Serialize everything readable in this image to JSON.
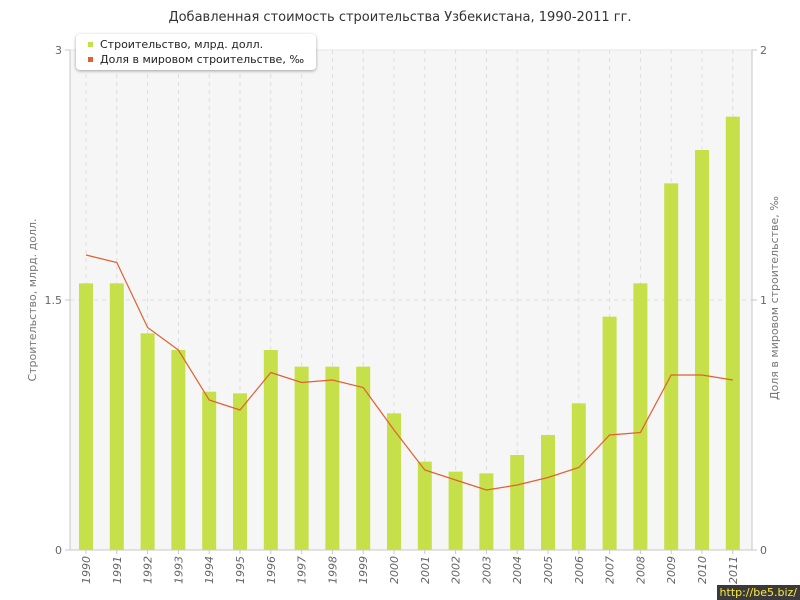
{
  "chart_data": {
    "type": "bar",
    "title": "Добавленная стоимость строительства Узбекистана, 1990-2011 гг.",
    "ylabel": "Строительство, млрд. долл.",
    "y2label": "Доля в мировом строительстве, ‰",
    "ylim": [
      0,
      3
    ],
    "y2lim": [
      0,
      2
    ],
    "yticks": [
      "0",
      "1.5",
      "3"
    ],
    "y2ticks": [
      "0",
      "1",
      "2"
    ],
    "grid": true,
    "legend_position": "top-left",
    "categories": [
      "1990",
      "1991",
      "1992",
      "1993",
      "1994",
      "1995",
      "1996",
      "1997",
      "1998",
      "1999",
      "2000",
      "2001",
      "2002",
      "2003",
      "2004",
      "2005",
      "2006",
      "2007",
      "2008",
      "2009",
      "2010",
      "2011"
    ],
    "series": [
      {
        "name": "Строительство, млрд. долл.",
        "type": "bar",
        "axis": "left",
        "color": "#c6e04a",
        "values": [
          1.6,
          1.6,
          1.3,
          1.2,
          0.95,
          0.94,
          1.2,
          1.1,
          1.1,
          1.1,
          0.82,
          0.53,
          0.47,
          0.46,
          0.57,
          0.69,
          0.88,
          1.4,
          1.6,
          2.2,
          2.4,
          2.6
        ]
      },
      {
        "name": "Доля в мировом строительстве, ‰",
        "type": "line",
        "axis": "right",
        "color": "#e06030",
        "values": [
          1.18,
          1.15,
          0.89,
          0.8,
          0.6,
          0.56,
          0.71,
          0.67,
          0.68,
          0.65,
          0.48,
          0.32,
          0.28,
          0.24,
          0.26,
          0.29,
          0.33,
          0.46,
          0.47,
          0.7,
          0.7,
          0.68
        ]
      }
    ]
  },
  "watermark": "http://be5.biz/"
}
